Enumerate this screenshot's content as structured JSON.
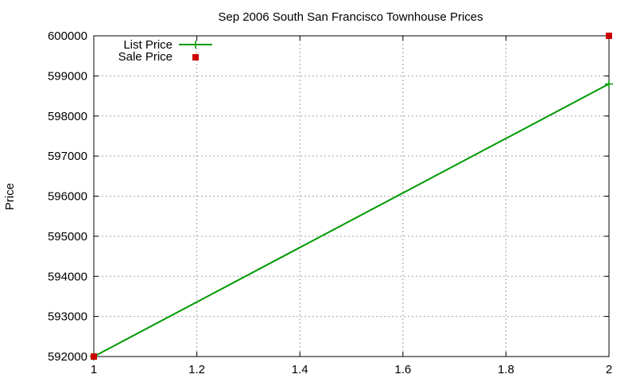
{
  "chart_data": {
    "type": "line",
    "title": "Sep 2006 South San Francisco Townhouse Prices",
    "xlabel": "",
    "ylabel": "Price",
    "xlim": [
      1,
      2
    ],
    "ylim": [
      592000,
      600000
    ],
    "x_ticks": [
      "1",
      "1.2",
      "1.4",
      "1.6",
      "1.8",
      "2"
    ],
    "y_ticks": [
      "592000",
      "593000",
      "594000",
      "595000",
      "596000",
      "597000",
      "598000",
      "599000",
      "600000"
    ],
    "grid": true,
    "legend_position": "top-left",
    "series": [
      {
        "name": "List Price",
        "style": "line+cross",
        "color": "#009900",
        "points": [
          [
            1,
            592000
          ],
          [
            2,
            598800
          ]
        ]
      },
      {
        "name": "Sale Price",
        "style": "square-marker",
        "color": "#cc0000",
        "points": [
          [
            1,
            592000
          ],
          [
            2,
            600000
          ]
        ]
      }
    ]
  }
}
